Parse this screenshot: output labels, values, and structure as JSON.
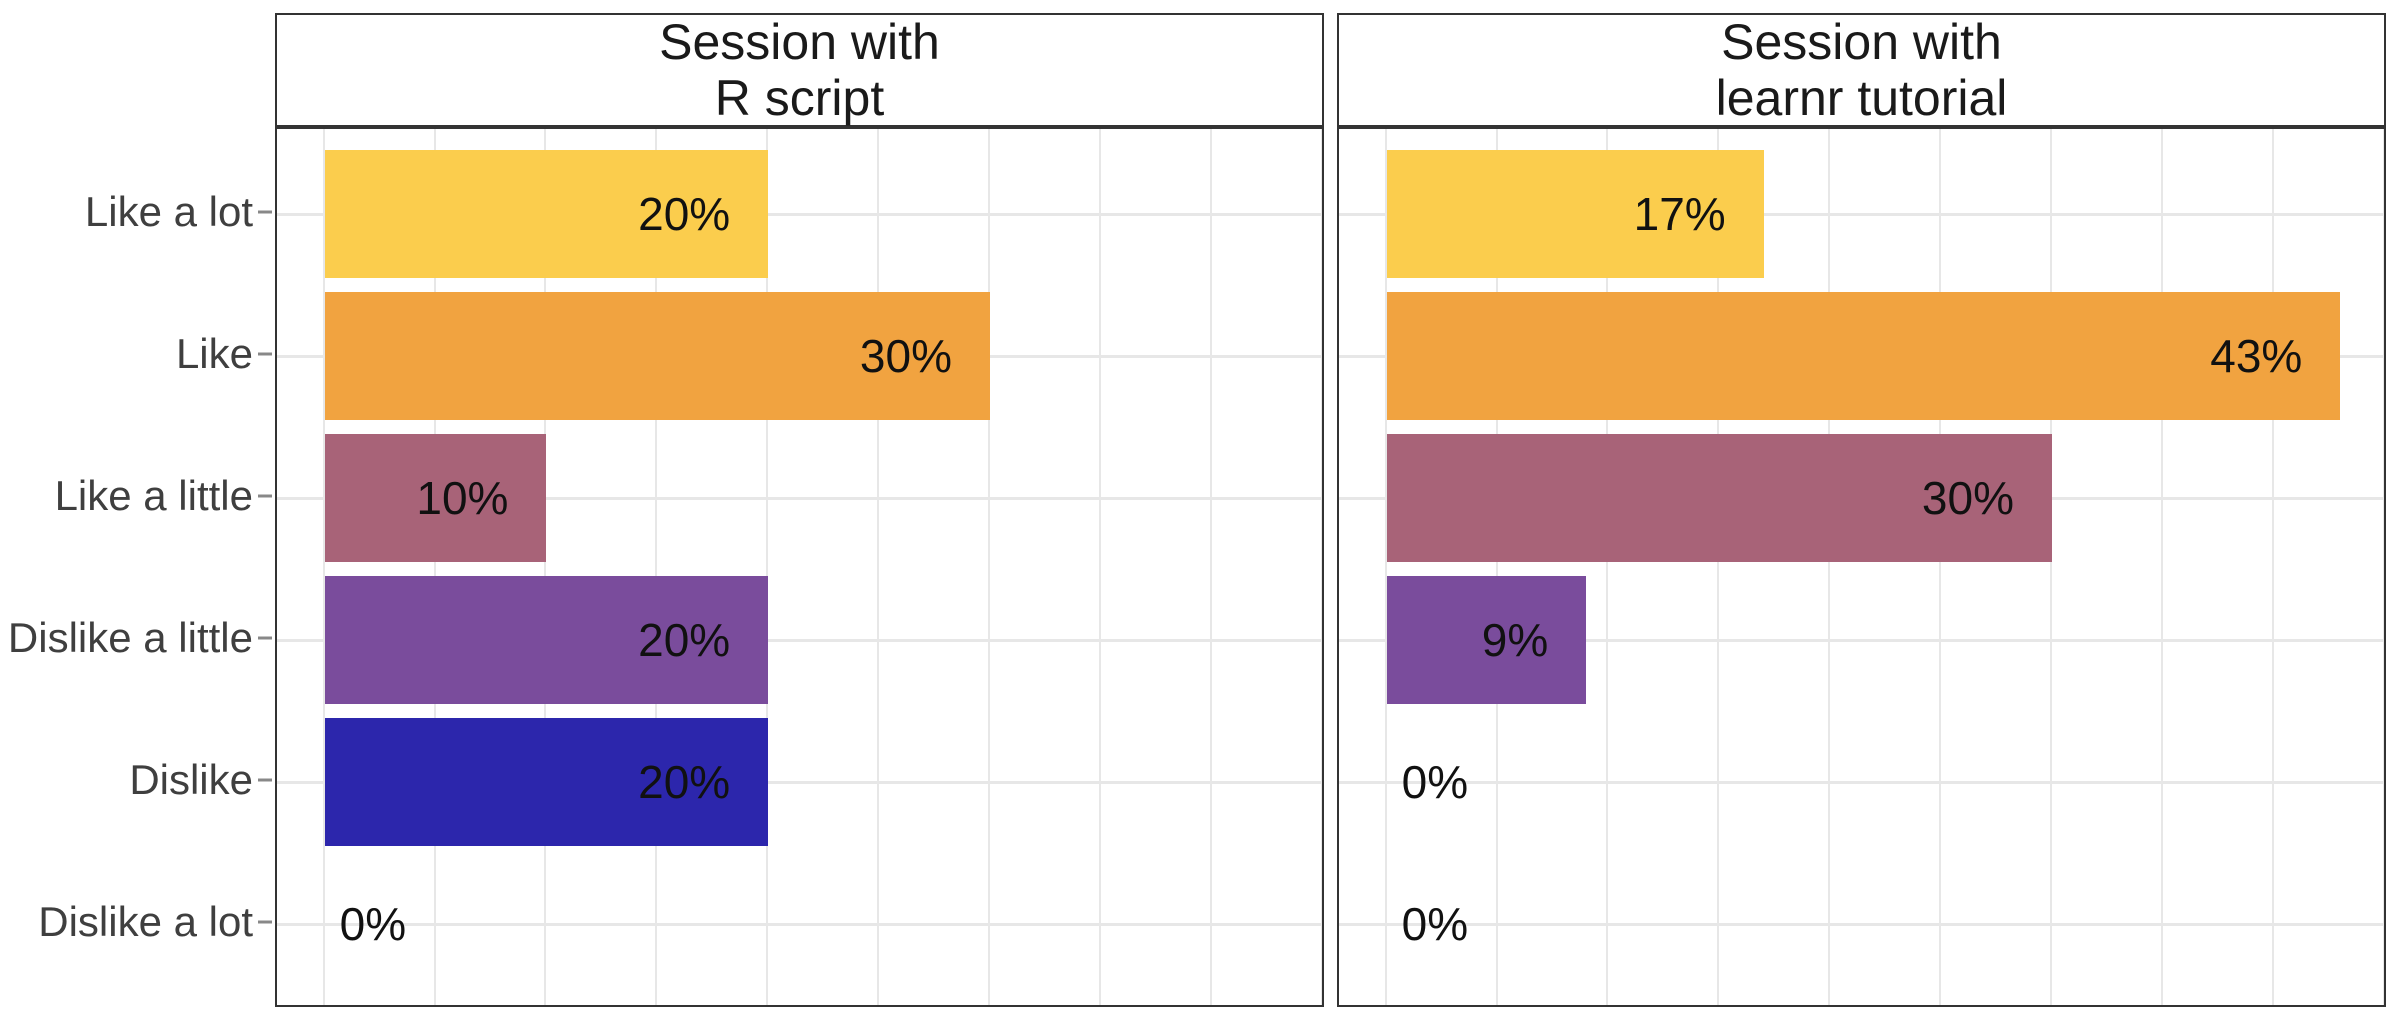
{
  "chart_data": {
    "type": "bar",
    "orientation": "horizontal",
    "title": "",
    "categories": [
      "Like a lot",
      "Like",
      "Like a little",
      "Dislike a little",
      "Dislike",
      "Dislike a lot"
    ],
    "series": [
      {
        "name": "Session with R script",
        "strip_lines": [
          "Session with",
          "R script"
        ],
        "values": [
          20,
          30,
          10,
          20,
          20,
          0
        ],
        "labels": [
          "20%",
          "30%",
          "10%",
          "20%",
          "20%",
          "0%"
        ]
      },
      {
        "name": "Session with learnr tutorial",
        "strip_lines": [
          "Session with",
          "learnr tutorial"
        ],
        "values": [
          17,
          43,
          30,
          9,
          0,
          0
        ],
        "labels": [
          "17%",
          "43%",
          "30%",
          "9%",
          "0%",
          "0%"
        ]
      }
    ],
    "category_colors": [
      "#FBCD4D",
      "#F1A340",
      "#A86378",
      "#7A4C9C",
      "#2C26AC",
      "#2C26AC"
    ],
    "value_unit": "%",
    "x_axis": {
      "min": -2.15,
      "max": 45.15,
      "gridline_step": 5,
      "gridlines": [
        0,
        5,
        10,
        15,
        20,
        25,
        30,
        35,
        40,
        45
      ],
      "tick_labels_visible": false
    },
    "y_axis": {
      "tick_labels_visible": true,
      "ticks_on_left_facet_only": true
    },
    "legend_position": "none",
    "grid": true,
    "facet_layout": "columns"
  },
  "styles": {
    "background_color": "#FFFFFF",
    "grid_color": "#E7E7E7",
    "panel_border_color": "#333333",
    "strip_background": "#FFFFFF",
    "strip_text_color": "#1A1A1A",
    "axis_text_color": "#3F3F3F",
    "bar_label_color": "#111111",
    "tick_color": "#888888"
  }
}
